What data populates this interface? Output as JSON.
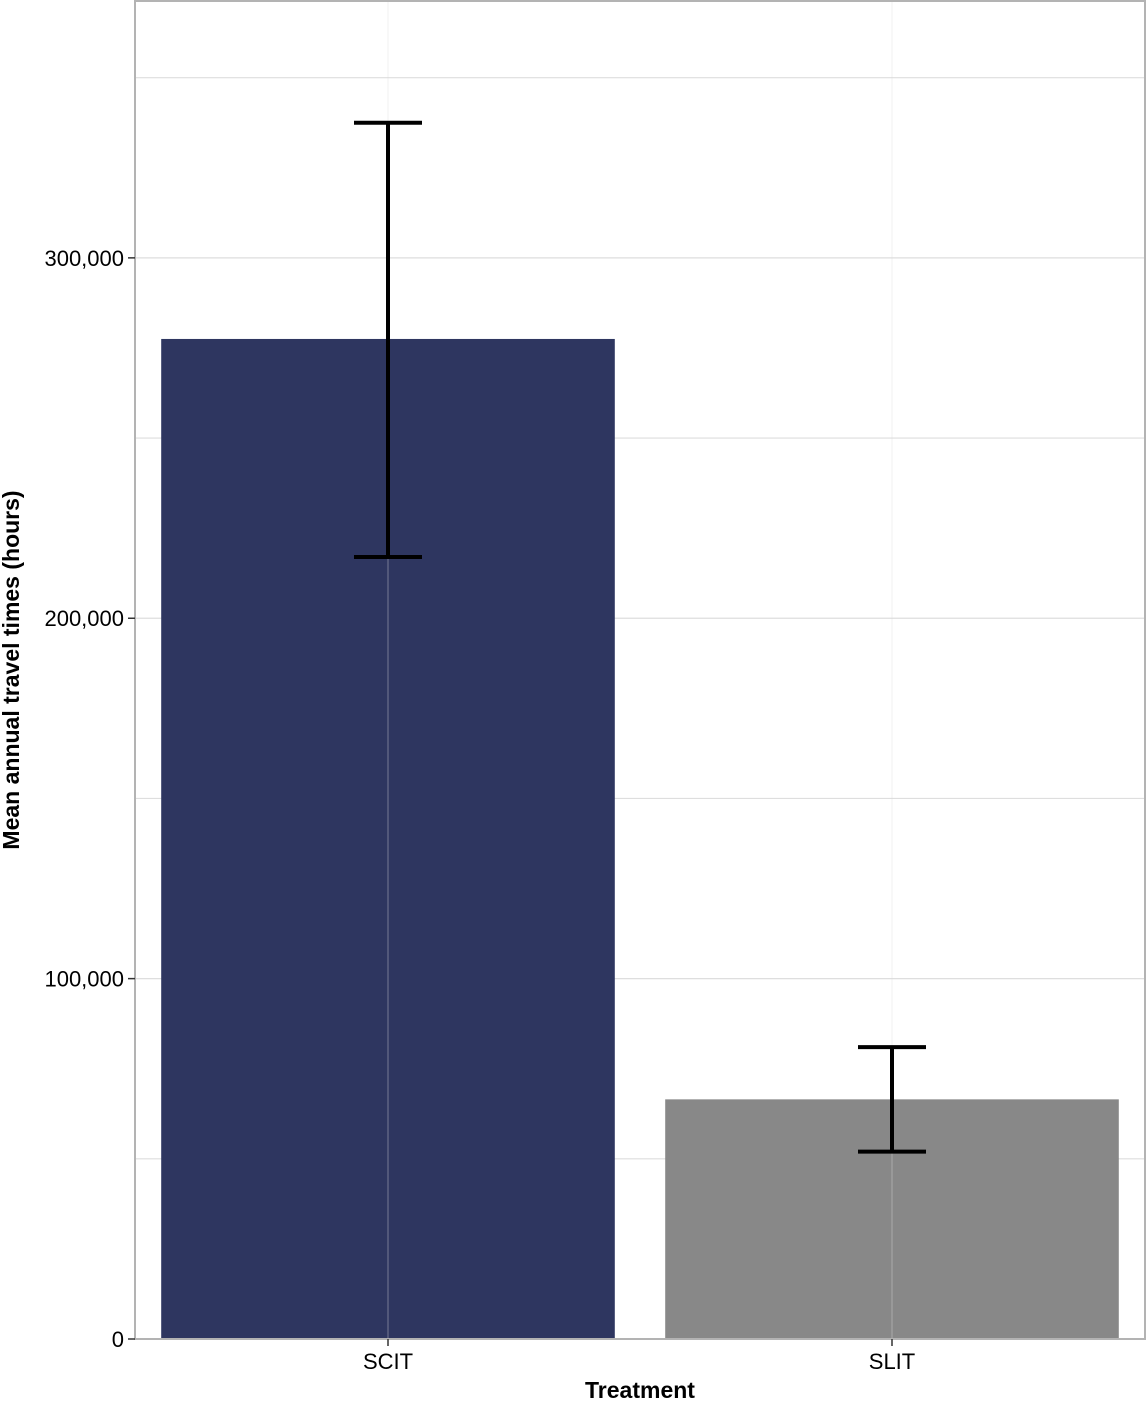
{
  "chart_data": {
    "type": "bar",
    "title": "",
    "xlabel": "Treatment",
    "ylabel": "Mean annual travel times (hours)",
    "categories": [
      "SCIT",
      "SLIT"
    ],
    "values": [
      277500,
      66500
    ],
    "error_bars": [
      {
        "low": 217000,
        "high": 337500
      },
      {
        "low": 52000,
        "high": 81000
      }
    ],
    "bar_colors": [
      "#2e3660",
      "#888888"
    ],
    "ylim": [
      0,
      371000
    ],
    "yticks": [
      0,
      100000,
      200000,
      300000
    ],
    "ytick_labels": [
      "0",
      "100,000",
      "200,000",
      "300,000"
    ],
    "grid": true,
    "legend": "none"
  }
}
